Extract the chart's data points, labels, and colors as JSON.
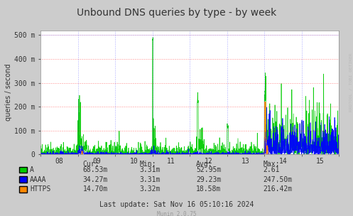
{
  "title": "Unbound DNS queries by type - by week",
  "ylabel": "queries / second",
  "background_color": "#CCCCCC",
  "plot_bg_color": "#FFFFFF",
  "x_tick_labels": [
    "08",
    "09",
    "10",
    "11",
    "12",
    "13",
    "14",
    "15"
  ],
  "y_ticks": [
    0,
    100,
    200,
    300,
    400,
    500
  ],
  "y_tick_labels": [
    "0",
    "100 m",
    "200 m",
    "300 m",
    "400 m",
    "500 m"
  ],
  "ylim": [
    0,
    520
  ],
  "xlim": [
    0,
    8
  ],
  "series_colors": {
    "A": "#00CC00",
    "AAAA": "#0000FF",
    "HTTPS": "#FF8800"
  },
  "legend": [
    {
      "label": "A",
      "color": "#00CC00"
    },
    {
      "label": "AAAA",
      "color": "#0000FF"
    },
    {
      "label": "HTTPS",
      "color": "#FF8800"
    }
  ],
  "stats_header": [
    "Cur:",
    "Min:",
    "Avg:",
    "Max:"
  ],
  "stats": [
    {
      "name": "A",
      "cur": "68.53m",
      "min": "3.31m",
      "avg": "52.95m",
      "max": "2.61"
    },
    {
      "name": "AAAA",
      "cur": "34.27m",
      "min": "3.31m",
      "avg": "29.23m",
      "max": "247.50m"
    },
    {
      "name": "HTTPS",
      "cur": "14.70m",
      "min": "3.32m",
      "avg": "18.58m",
      "max": "216.42m"
    }
  ],
  "last_update": "Last update: Sat Nov 16 05:10:16 2024",
  "munin_version": "Munin 2.0.75",
  "rrdtool_label": "RRDTOOL / TOBI OETIKER",
  "title_fontsize": 10,
  "axis_fontsize": 7,
  "label_fontsize": 7,
  "stats_fontsize": 7
}
